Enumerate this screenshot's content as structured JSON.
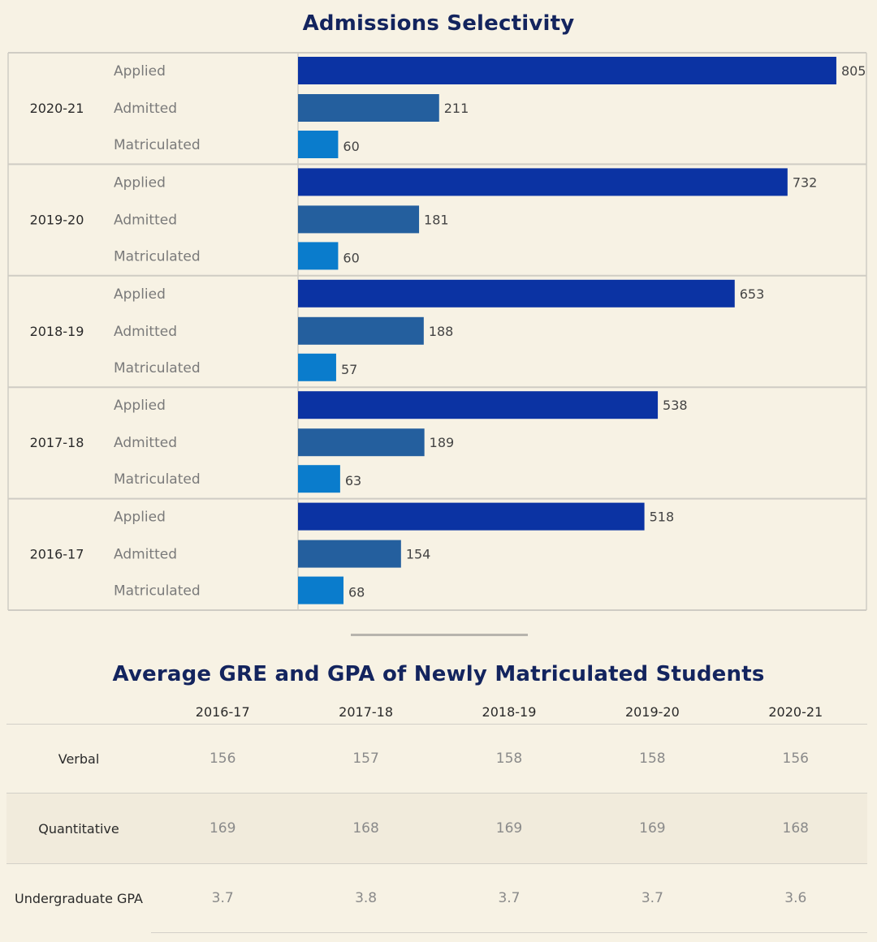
{
  "chart_data": [
    {
      "type": "bar",
      "title": "Admissions Selectivity",
      "orientation": "horizontal",
      "groups": [
        "2020-21",
        "2019-20",
        "2018-19",
        "2017-18",
        "2016-17"
      ],
      "categories": [
        "Applied",
        "Admitted",
        "Matriculated"
      ],
      "series": [
        {
          "group": "2020-21",
          "values": [
            805,
            211,
            60
          ]
        },
        {
          "group": "2019-20",
          "values": [
            732,
            181,
            60
          ]
        },
        {
          "group": "2018-19",
          "values": [
            653,
            188,
            57
          ]
        },
        {
          "group": "2017-18",
          "values": [
            538,
            189,
            63
          ]
        },
        {
          "group": "2016-17",
          "values": [
            518,
            154,
            68
          ]
        }
      ],
      "colors": {
        "Applied": "#0b33a3",
        "Admitted": "#245f9e",
        "Matriculated": "#0a7ccc"
      },
      "xlim": [
        0,
        850
      ]
    },
    {
      "type": "table",
      "title": "Average GRE and GPA of Newly Matriculated Students",
      "columns": [
        "2016-17",
        "2017-18",
        "2018-19",
        "2019-20",
        "2020-21"
      ],
      "rows": [
        {
          "label": "Verbal",
          "values": [
            "156",
            "157",
            "158",
            "158",
            "156"
          ]
        },
        {
          "label": "Quantitative",
          "values": [
            "169",
            "168",
            "169",
            "169",
            "168"
          ]
        },
        {
          "label": "Undergraduate GPA",
          "values": [
            "3.7",
            "3.8",
            "3.7",
            "3.7",
            "3.6"
          ]
        }
      ]
    }
  ]
}
